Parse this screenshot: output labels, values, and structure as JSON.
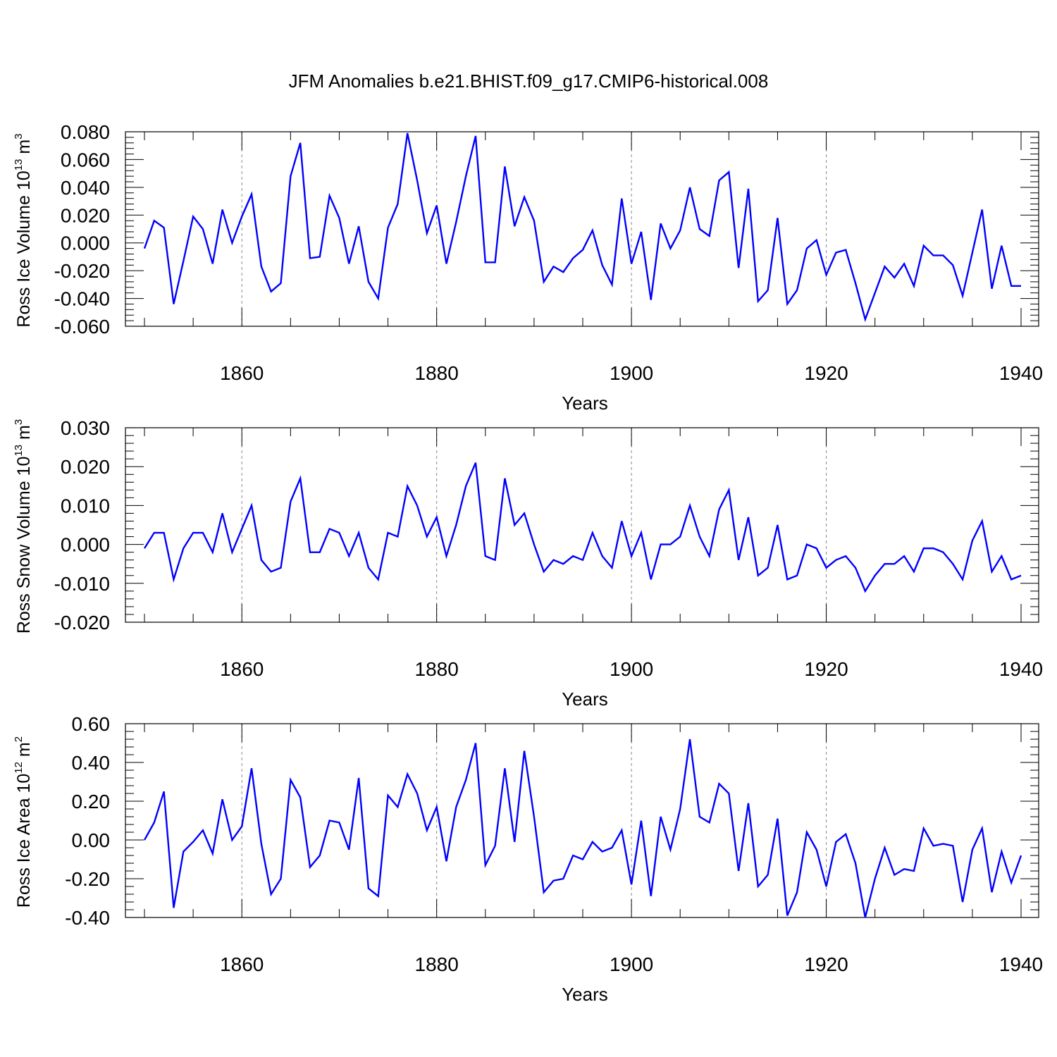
{
  "figure": {
    "title": "JFM Anomalies b.e21.BHIST.f09_g17.CMIP6-historical.008"
  },
  "chart_data": [
    {
      "type": "line",
      "title": "JFM Anomalies b.e21.BHIST.f09_g17.CMIP6-historical.008",
      "xlabel": "Years",
      "ylabel_parts": [
        "Ross Ice Volume 10",
        "13",
        " m",
        "3"
      ],
      "xlim": [
        1850,
        1940
      ],
      "ylim": [
        -0.06,
        0.08
      ],
      "x_ticks": [
        1860,
        1880,
        1900,
        1920,
        1940
      ],
      "y_ticks": [
        -0.06,
        -0.04,
        -0.02,
        0.0,
        0.02,
        0.04,
        0.06,
        0.08
      ],
      "y_tick_labels": [
        "-0.060",
        "-0.040",
        "-0.020",
        "0.000",
        "0.020",
        "0.040",
        "0.060",
        "0.080"
      ],
      "x_gridlines": [
        1860,
        1880,
        1900,
        1920
      ],
      "color": "#0000ff",
      "series": [
        {
          "name": "Ross Ice Volume",
          "x_start": 1850,
          "values": [
            -0.004,
            0.016,
            0.011,
            -0.044,
            -0.013,
            0.019,
            0.01,
            -0.015,
            0.024,
            0.0,
            0.019,
            0.035,
            -0.017,
            -0.035,
            -0.029,
            0.048,
            0.072,
            -0.011,
            -0.01,
            0.034,
            0.018,
            -0.015,
            0.012,
            -0.028,
            -0.04,
            0.011,
            0.028,
            0.079,
            0.045,
            0.007,
            0.027,
            -0.015,
            0.015,
            0.048,
            0.077,
            -0.014,
            -0.014,
            0.055,
            0.012,
            0.033,
            0.016,
            -0.028,
            -0.017,
            -0.021,
            -0.011,
            -0.005,
            0.009,
            -0.016,
            -0.03,
            0.032,
            -0.015,
            0.008,
            -0.041,
            0.014,
            -0.004,
            0.009,
            0.04,
            0.01,
            0.005,
            0.045,
            0.051,
            -0.018,
            0.039,
            -0.042,
            -0.034,
            0.018,
            -0.044,
            -0.034,
            -0.004,
            0.002,
            -0.023,
            -0.007,
            -0.005,
            -0.029,
            -0.055,
            -0.036,
            -0.017,
            -0.025,
            -0.015,
            -0.031,
            -0.002,
            -0.009,
            -0.009,
            -0.016,
            -0.038,
            -0.007,
            0.024,
            -0.033,
            -0.002,
            -0.031,
            -0.031
          ]
        }
      ]
    },
    {
      "type": "line",
      "xlabel": "Years",
      "ylabel_parts": [
        "Ross Snow Volume 10",
        "13",
        " m",
        "3"
      ],
      "xlim": [
        1850,
        1940
      ],
      "ylim": [
        -0.02,
        0.03
      ],
      "x_ticks": [
        1860,
        1880,
        1900,
        1920,
        1940
      ],
      "y_ticks": [
        -0.02,
        -0.01,
        0.0,
        0.01,
        0.02,
        0.03
      ],
      "y_tick_labels": [
        "-0.020",
        "-0.010",
        "0.000",
        "0.010",
        "0.020",
        "0.030"
      ],
      "x_gridlines": [
        1860,
        1880,
        1900,
        1920
      ],
      "color": "#0000ff",
      "series": [
        {
          "name": "Ross Snow Volume",
          "x_start": 1850,
          "values": [
            -0.001,
            0.003,
            0.003,
            -0.009,
            -0.001,
            0.003,
            0.003,
            -0.002,
            0.008,
            -0.002,
            0.004,
            0.01,
            -0.004,
            -0.007,
            -0.006,
            0.011,
            0.017,
            -0.002,
            -0.002,
            0.004,
            0.003,
            -0.003,
            0.003,
            -0.006,
            -0.009,
            0.003,
            0.002,
            0.015,
            0.01,
            0.002,
            0.007,
            -0.003,
            0.005,
            0.015,
            0.021,
            -0.003,
            -0.004,
            0.017,
            0.005,
            0.008,
            0.0,
            -0.007,
            -0.004,
            -0.005,
            -0.003,
            -0.004,
            0.003,
            -0.003,
            -0.006,
            0.006,
            -0.003,
            0.003,
            -0.009,
            0.0,
            0.0,
            0.002,
            0.01,
            0.002,
            -0.003,
            0.009,
            0.014,
            -0.004,
            0.007,
            -0.008,
            -0.006,
            0.005,
            -0.009,
            -0.008,
            0.0,
            -0.001,
            -0.006,
            -0.004,
            -0.003,
            -0.006,
            -0.012,
            -0.008,
            -0.005,
            -0.005,
            -0.003,
            -0.007,
            -0.001,
            -0.001,
            -0.002,
            -0.005,
            -0.009,
            0.001,
            0.006,
            -0.007,
            -0.003,
            -0.009,
            -0.008
          ]
        }
      ]
    },
    {
      "type": "line",
      "xlabel": "Years",
      "ylabel_parts": [
        "Ross Ice Area 10",
        "12",
        " m",
        "2"
      ],
      "xlim": [
        1850,
        1940
      ],
      "ylim": [
        -0.4,
        0.6
      ],
      "x_ticks": [
        1860,
        1880,
        1900,
        1920,
        1940
      ],
      "y_ticks": [
        -0.4,
        -0.2,
        0.0,
        0.2,
        0.4,
        0.6
      ],
      "y_tick_labels": [
        "-0.40",
        "-0.20",
        "0.00",
        "0.20",
        "0.40",
        "0.60"
      ],
      "x_gridlines": [
        1860,
        1880,
        1900,
        1920
      ],
      "color": "#0000ff",
      "series": [
        {
          "name": "Ross Ice Area",
          "x_start": 1850,
          "values": [
            0.0,
            0.09,
            0.25,
            -0.35,
            -0.06,
            -0.01,
            0.05,
            -0.07,
            0.21,
            0.0,
            0.07,
            0.37,
            -0.02,
            -0.28,
            -0.2,
            0.31,
            0.22,
            -0.14,
            -0.08,
            0.1,
            0.09,
            -0.05,
            0.32,
            -0.25,
            -0.29,
            0.23,
            0.17,
            0.34,
            0.24,
            0.05,
            0.17,
            -0.11,
            0.17,
            0.31,
            0.5,
            -0.13,
            -0.03,
            0.37,
            -0.01,
            0.46,
            0.12,
            -0.27,
            -0.21,
            -0.2,
            -0.08,
            -0.1,
            -0.01,
            -0.06,
            -0.04,
            0.05,
            -0.23,
            0.1,
            -0.29,
            0.12,
            -0.05,
            0.16,
            0.52,
            0.12,
            0.09,
            0.29,
            0.24,
            -0.16,
            0.19,
            -0.24,
            -0.18,
            0.11,
            -0.39,
            -0.27,
            0.04,
            -0.05,
            -0.24,
            -0.01,
            0.03,
            -0.12,
            -0.4,
            -0.2,
            -0.04,
            -0.18,
            -0.15,
            -0.16,
            0.06,
            -0.03,
            -0.02,
            -0.03,
            -0.32,
            -0.05,
            0.06,
            -0.27,
            -0.06,
            -0.22,
            -0.08
          ]
        }
      ]
    }
  ]
}
